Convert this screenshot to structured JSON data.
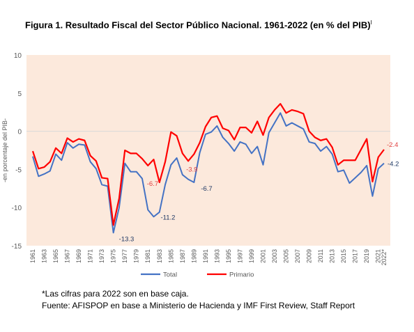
{
  "title": "Figura 1. Resultado Fiscal del Sector Público Nacional. 1961-2022 (en % del PIB)",
  "title_sup": "I",
  "notes": {
    "line1": "*Las cifras para 2022 son en base caja.",
    "line2": "Fuente: AFISPOP en base a Ministerio de Hacienda y IMF First Review, Staff Report"
  },
  "chart_data": {
    "type": "line",
    "ylabel": "-en porcentaje del PIB-",
    "ylim": [
      -15,
      10
    ],
    "yticks": [
      10,
      5,
      0,
      -5,
      -10,
      -15
    ],
    "x": [
      1961,
      1962,
      1963,
      1964,
      1965,
      1966,
      1967,
      1968,
      1969,
      1970,
      1971,
      1972,
      1973,
      1974,
      1975,
      1976,
      1977,
      1978,
      1979,
      1980,
      1981,
      1982,
      1983,
      1984,
      1985,
      1986,
      1987,
      1988,
      1989,
      1990,
      1991,
      1992,
      1993,
      1994,
      1995,
      1996,
      1997,
      1998,
      1999,
      2000,
      2001,
      2002,
      2003,
      2004,
      2005,
      2006,
      2007,
      2008,
      2009,
      2010,
      2011,
      2012,
      2013,
      2014,
      2015,
      2016,
      2017,
      2018,
      2019,
      2020,
      2021,
      2022
    ],
    "xtick_labels": [
      "1961",
      "1963",
      "1965",
      "1967",
      "1969",
      "1971",
      "1973",
      "1975",
      "1977",
      "1979",
      "1981",
      "1983",
      "1985",
      "1987",
      "1989",
      "1991",
      "1993",
      "1995",
      "1997",
      "1999",
      "2001",
      "2003",
      "2005",
      "2007",
      "2009",
      "2011",
      "2013",
      "2015",
      "2017",
      "2019",
      "2021",
      "2022*"
    ],
    "xtick_years": [
      1961,
      1963,
      1965,
      1967,
      1969,
      1971,
      1973,
      1975,
      1977,
      1979,
      1981,
      1983,
      1985,
      1987,
      1989,
      1991,
      1993,
      1995,
      1997,
      1999,
      2001,
      2003,
      2005,
      2007,
      2009,
      2011,
      2013,
      2015,
      2017,
      2019,
      2021,
      2022
    ],
    "series": [
      {
        "name": "Total",
        "color": "#4472C4",
        "values": [
          -3.3,
          -5.9,
          -5.6,
          -5.2,
          -3.0,
          -3.8,
          -1.5,
          -2.2,
          -1.7,
          -1.8,
          -4.0,
          -4.9,
          -7.0,
          -7.2,
          -13.3,
          -10.0,
          -4.2,
          -5.3,
          -5.3,
          -6.2,
          -10.3,
          -11.2,
          -10.6,
          -7.0,
          -4.4,
          -3.5,
          -5.7,
          -6.3,
          -6.7,
          -2.8,
          -0.4,
          -0.1,
          0.7,
          -0.8,
          -1.6,
          -2.6,
          -1.4,
          -1.7,
          -2.9,
          -2.0,
          -4.4,
          -0.2,
          1.1,
          2.4,
          0.7,
          1.1,
          0.7,
          0.3,
          -1.4,
          -1.6,
          -2.6,
          -2.0,
          -3.0,
          -5.3,
          -5.1,
          -6.8,
          -6.1,
          -5.4,
          -4.5,
          -8.5,
          -4.9,
          -4.2
        ]
      },
      {
        "name": "Primario",
        "color": "#FF0000",
        "values": [
          -2.6,
          -4.9,
          -4.7,
          -4.0,
          -2.2,
          -2.9,
          -0.9,
          -1.4,
          -1.0,
          -1.2,
          -3.2,
          -3.9,
          -6.1,
          -6.2,
          -12.3,
          -8.8,
          -2.5,
          -2.9,
          -2.9,
          -3.6,
          -4.5,
          -3.7,
          -6.7,
          -4.0,
          -0.1,
          -0.6,
          -2.9,
          -3.9,
          -3.0,
          -1.5,
          0.6,
          1.8,
          2.0,
          0.4,
          0.1,
          -1.1,
          0.5,
          0.5,
          -0.2,
          1.3,
          -0.5,
          1.8,
          2.8,
          3.6,
          2.4,
          2.8,
          2.6,
          2.3,
          0.0,
          -0.8,
          -1.2,
          -1.0,
          -2.1,
          -4.4,
          -3.8,
          -3.8,
          -3.8,
          -2.4,
          -1.0,
          -6.6,
          -3.4,
          -2.4
        ]
      }
    ],
    "annotations": [
      {
        "text": "-13.3",
        "series": "Total",
        "year": 1975
      },
      {
        "text": "-11.2",
        "series": "Total",
        "year": 1982
      },
      {
        "text": "-6.7",
        "series": "Primario",
        "year": 1983
      },
      {
        "text": "-3.9",
        "series": "Primario",
        "year": 1988
      },
      {
        "text": "-6.7",
        "series": "Total",
        "year": 1989
      },
      {
        "text": "-2.4",
        "series": "Primario",
        "year": 2022
      },
      {
        "text": "-4.2",
        "series": "Total",
        "year": 2022
      }
    ],
    "legend_position": "bottom",
    "background_color": "#FCE9DC"
  }
}
